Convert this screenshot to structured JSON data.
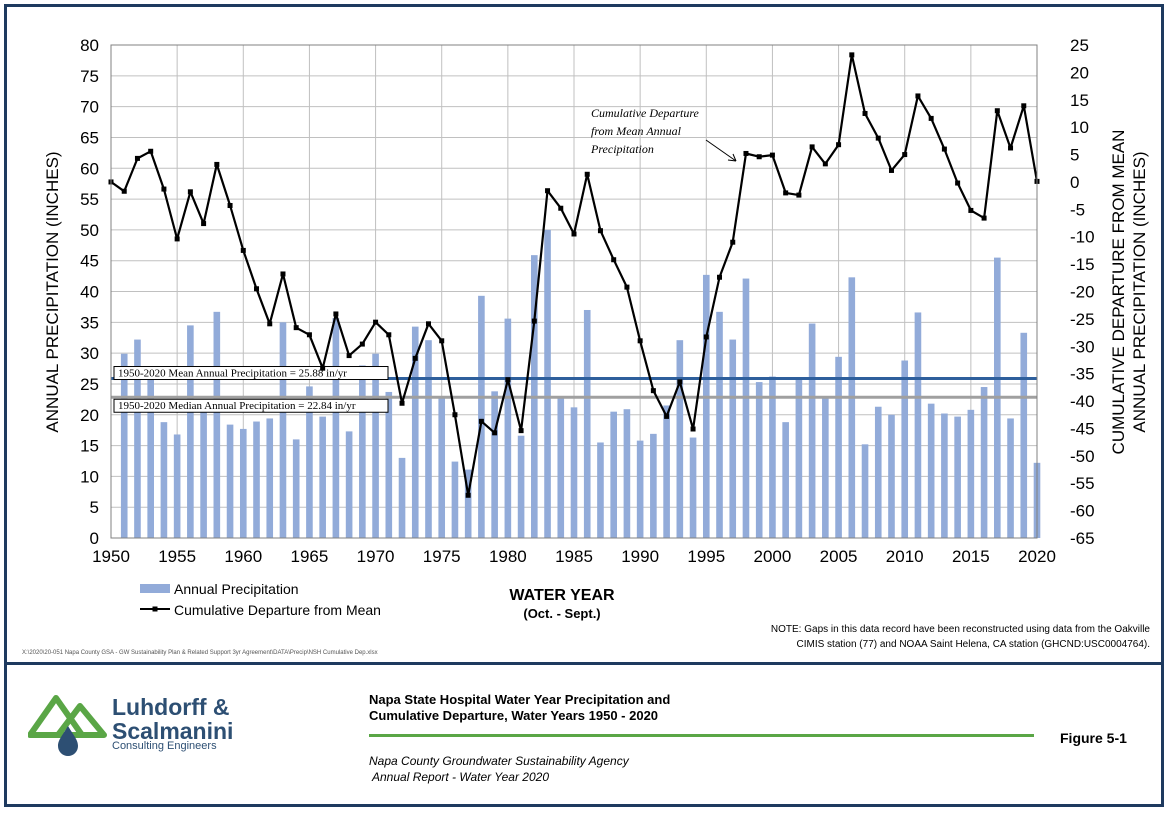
{
  "chart_data": {
    "type": "bar",
    "xlabel": "WATER YEAR",
    "xlabel_sub": "(Oct. - Sept.)",
    "ylabel_left": "ANNUAL PRECIPITATION (INCHES)",
    "ylabel_right_line1": "CUMULATIVE DEPARTURE FROM MEAN",
    "ylabel_right_line2": "ANNUAL PRECIPITATION (INCHES)",
    "ylim_left": [
      0,
      80
    ],
    "ylim_right": [
      -65,
      25
    ],
    "xlim": [
      1950,
      2020
    ],
    "y_ticks_left": [
      "0",
      "5",
      "10",
      "15",
      "20",
      "25",
      "30",
      "35",
      "40",
      "45",
      "50",
      "55",
      "60",
      "65",
      "70",
      "75",
      "80"
    ],
    "y_ticks_right": [
      "-65",
      "-60",
      "-55",
      "-50",
      "-45",
      "-40",
      "-35",
      "-30",
      "-25",
      "-20",
      "-15",
      "-10",
      "-5",
      "0",
      "5",
      "10",
      "15",
      "20",
      "25"
    ],
    "x_ticks": [
      "1950",
      "1955",
      "1960",
      "1965",
      "1970",
      "1975",
      "1980",
      "1985",
      "1990",
      "1995",
      "2000",
      "2005",
      "2010",
      "2015",
      "2020"
    ],
    "grid": true,
    "legend": "bottom-left",
    "colors": {
      "bars": "#92abd9",
      "line": "#000000",
      "mean_line": "#2e5f9c",
      "median_line": "#a0a0a0",
      "grid": "#c0c0c0"
    },
    "series": [
      {
        "name": "Annual Precipitation",
        "type": "bar",
        "axis": "left",
        "x": [
          1951,
          1952,
          1953,
          1954,
          1955,
          1956,
          1957,
          1958,
          1959,
          1960,
          1961,
          1962,
          1963,
          1964,
          1965,
          1966,
          1967,
          1968,
          1969,
          1970,
          1971,
          1972,
          1973,
          1974,
          1975,
          1976,
          1977,
          1978,
          1979,
          1980,
          1981,
          1982,
          1983,
          1984,
          1985,
          1986,
          1987,
          1988,
          1989,
          1990,
          1991,
          1992,
          1993,
          1994,
          1995,
          1996,
          1997,
          1998,
          1999,
          2000,
          2001,
          2002,
          2003,
          2004,
          2005,
          2006,
          2007,
          2008,
          2009,
          2010,
          2011,
          2012,
          2013,
          2014,
          2015,
          2016,
          2017,
          2018,
          2019,
          2020
        ],
        "values": [
          29.9,
          32.2,
          26.2,
          18.8,
          16.8,
          34.5,
          20.9,
          36.7,
          18.4,
          17.7,
          18.9,
          19.4,
          35.0,
          16.0,
          24.6,
          19.7,
          35.7,
          17.3,
          28.0,
          29.9,
          23.7,
          13.0,
          34.3,
          32.1,
          22.8,
          12.4,
          11.1,
          39.3,
          23.8,
          35.6,
          16.6,
          45.9,
          50.0,
          22.7,
          21.2,
          37.0,
          15.5,
          20.5,
          20.9,
          15.8,
          16.9,
          21.5,
          32.1,
          16.3,
          42.7,
          36.7,
          32.2,
          42.1,
          25.3,
          26.2,
          18.8,
          25.8,
          34.8,
          22.9,
          29.4,
          42.3,
          15.2,
          21.3,
          20.0,
          28.8,
          36.6,
          21.8,
          20.2,
          19.7,
          20.8,
          24.5,
          45.5,
          19.4,
          33.3,
          12.2
        ]
      },
      {
        "name": "Cumulative Departure from Mean",
        "type": "line",
        "axis": "right",
        "x": [
          1950,
          1951,
          1952,
          1953,
          1954,
          1955,
          1956,
          1957,
          1958,
          1959,
          1960,
          1961,
          1962,
          1963,
          1964,
          1965,
          1966,
          1967,
          1968,
          1969,
          1970,
          1971,
          1972,
          1973,
          1974,
          1975,
          1976,
          1977,
          1978,
          1979,
          1980,
          1981,
          1982,
          1983,
          1984,
          1985,
          1986,
          1987,
          1988,
          1989,
          1990,
          1991,
          1992,
          1993,
          1994,
          1995,
          1996,
          1997,
          1998,
          1999,
          2000,
          2001,
          2002,
          2003,
          2004,
          2005,
          2006,
          2007,
          2008,
          2009,
          2010,
          2011,
          2012,
          2013,
          2014,
          2015,
          2016,
          2017,
          2018,
          2019,
          2020
        ],
        "values": [
          0,
          -1.7,
          4.3,
          5.6,
          -1.3,
          -10.4,
          -1.8,
          -7.6,
          3.2,
          -4.3,
          -12.5,
          -19.5,
          -25.9,
          -16.8,
          -26.6,
          -27.9,
          -34.0,
          -24.1,
          -31.7,
          -29.6,
          -25.6,
          -27.9,
          -40.4,
          -32.2,
          -25.9,
          -29.0,
          -42.5,
          -57.2,
          -43.7,
          -45.8,
          -36.1,
          -45.4,
          -25.4,
          -1.6,
          -4.8,
          -9.5,
          1.4,
          -8.9,
          -14.2,
          -19.2,
          -29.0,
          -38.1,
          -42.8,
          -36.5,
          -45.1,
          -28.3,
          -17.4,
          -11.0,
          5.2,
          4.6,
          4.9,
          -2.0,
          -2.4,
          6.4,
          3.3,
          6.8,
          23.2,
          12.5,
          8.0,
          2.1,
          5.0,
          15.7,
          11.6,
          6.0,
          -0.2,
          -5.2,
          -6.6,
          13.0,
          6.2,
          13.9,
          0.1
        ]
      }
    ],
    "reference_lines": [
      {
        "label": "1950-2020 Mean Annual Precipitation = 25.88 in/yr",
        "value": 25.88
      },
      {
        "label": "1950-2020 Median Annual Precipitation = 22.84 in/yr",
        "value": 22.84
      }
    ],
    "annotation_line1": "Cumulative Departure",
    "annotation_line2": "from Mean Annual",
    "annotation_line3": "Precipitation",
    "note_line1": "NOTE: Gaps in this data record have been reconstructed using data from the Oakville",
    "note_line2": "CIMIS station (77) and NOAA Saint Helena, CA station (GHCND:USC0004764)."
  },
  "file_path": "X:\\2020\\20-051 Napa County GSA - GW Sustainability Plan & Related Support 3yr Agreement\\DATA\\Precip\\NSH Cumulative Dep.xlsx",
  "logo": {
    "name_line1": "Luhdorff &",
    "name_line2": "Scalmanini",
    "subtitle": "Consulting Engineers"
  },
  "title_block": {
    "title_line1": "Napa State Hospital Water Year Precipitation and",
    "title_line2": "Cumulative Departure, Water Years 1950 - 2020",
    "agency_line1": "Napa County Groundwater Sustainability Agency",
    "agency_line2": " Annual Report - Water Year 2020",
    "figure_label": "Figure 5-1"
  }
}
